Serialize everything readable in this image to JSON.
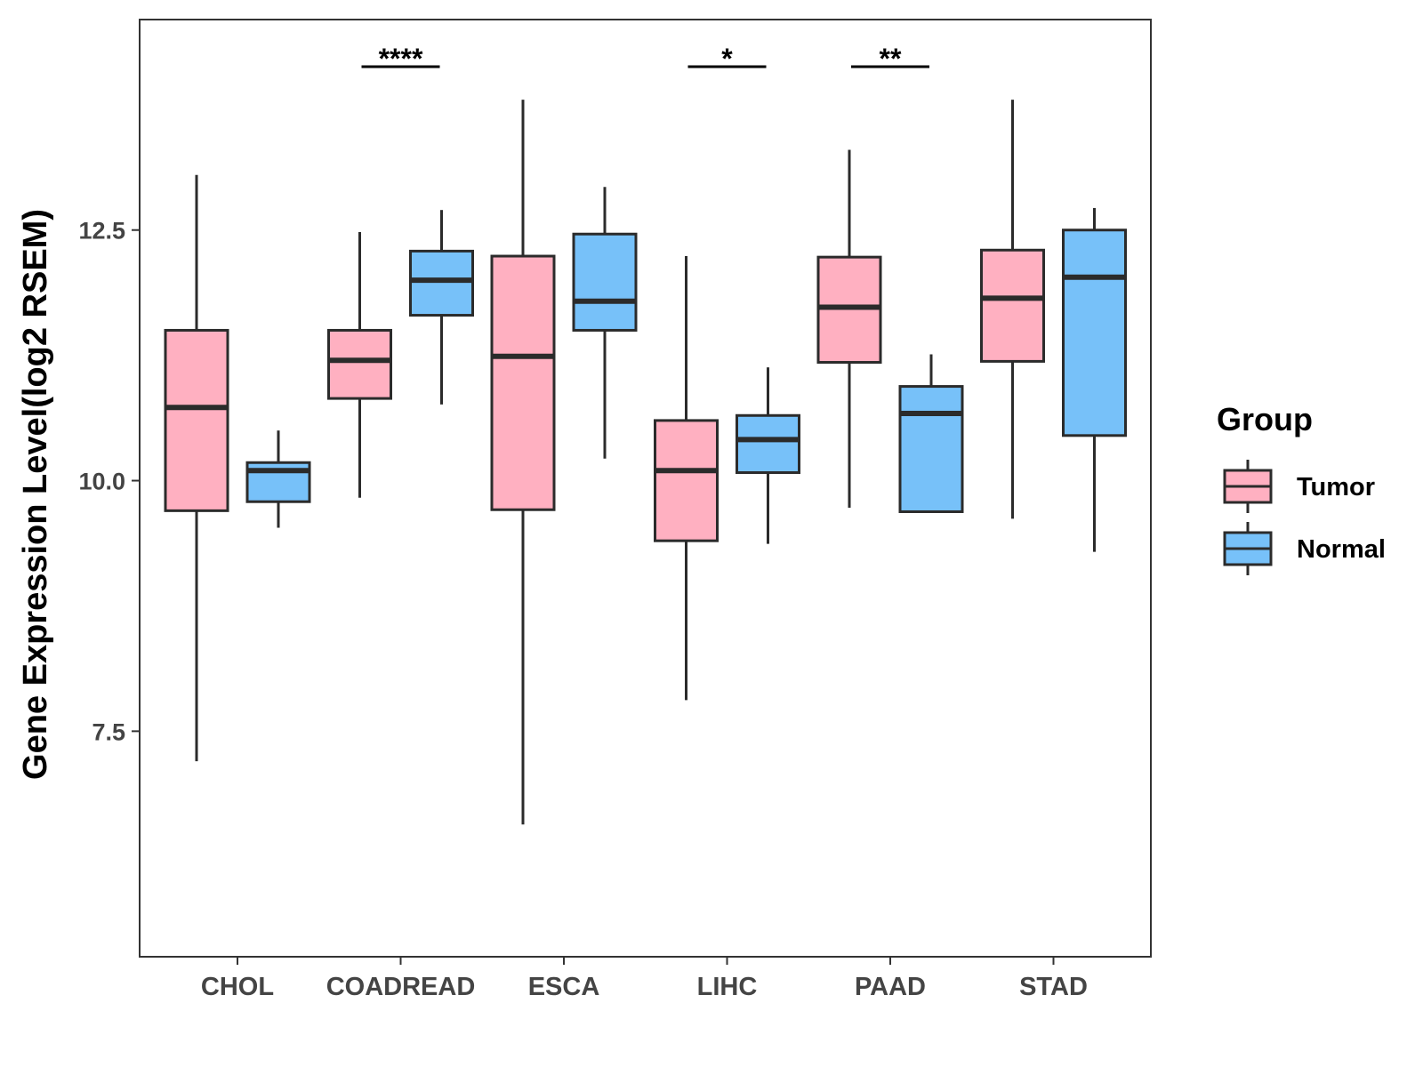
{
  "chart_data": {
    "type": "box",
    "title": "",
    "xlabel": "",
    "ylabel": "Gene Expression Level(log2 RSEM)",
    "ylim": [
      5.25,
      14.6
    ],
    "yticks": [
      7.5,
      10.0,
      12.5
    ],
    "ytick_labels": [
      "7.5",
      "10.0",
      "12.5"
    ],
    "categories": [
      "CHOL",
      "COADREAD",
      "ESCA",
      "LIHC",
      "PAAD",
      "STAD"
    ],
    "legend": {
      "title": "Group",
      "position": "right",
      "entries": [
        "Tumor",
        "Normal"
      ]
    },
    "series": [
      {
        "name": "Tumor",
        "color": "#FFB0C1",
        "boxes": [
          {
            "min": 7.2,
            "q1": 9.7,
            "median": 10.73,
            "q3": 11.5,
            "max": 13.05
          },
          {
            "min": 9.83,
            "q1": 10.82,
            "median": 11.2,
            "q3": 11.5,
            "max": 12.48
          },
          {
            "min": 6.57,
            "q1": 9.71,
            "median": 11.24,
            "q3": 12.24,
            "max": 13.8
          },
          {
            "min": 7.81,
            "q1": 9.4,
            "median": 10.1,
            "q3": 10.6,
            "max": 12.24
          },
          {
            "min": 9.73,
            "q1": 11.18,
            "median": 11.73,
            "q3": 12.23,
            "max": 13.3
          },
          {
            "min": 9.62,
            "q1": 11.19,
            "median": 11.82,
            "q3": 12.3,
            "max": 13.8
          }
        ]
      },
      {
        "name": "Normal",
        "color": "#77C1F9",
        "boxes": [
          {
            "min": 9.53,
            "q1": 9.79,
            "median": 10.1,
            "q3": 10.18,
            "max": 10.5
          },
          {
            "min": 10.76,
            "q1": 11.65,
            "median": 12.0,
            "q3": 12.29,
            "max": 12.7
          },
          {
            "min": 10.22,
            "q1": 11.5,
            "median": 11.79,
            "q3": 12.46,
            "max": 12.93
          },
          {
            "min": 9.37,
            "q1": 10.08,
            "median": 10.41,
            "q3": 10.65,
            "max": 11.13
          },
          {
            "min": 9.69,
            "q1": 9.69,
            "median": 10.67,
            "q3": 10.94,
            "max": 11.26
          },
          {
            "min": 9.29,
            "q1": 10.45,
            "median": 12.03,
            "q3": 12.5,
            "max": 12.72
          }
        ]
      }
    ],
    "significance": [
      {
        "category": "COADREAD",
        "label": "****"
      },
      {
        "category": "LIHC",
        "label": "*"
      },
      {
        "category": "PAAD",
        "label": "**"
      }
    ]
  }
}
